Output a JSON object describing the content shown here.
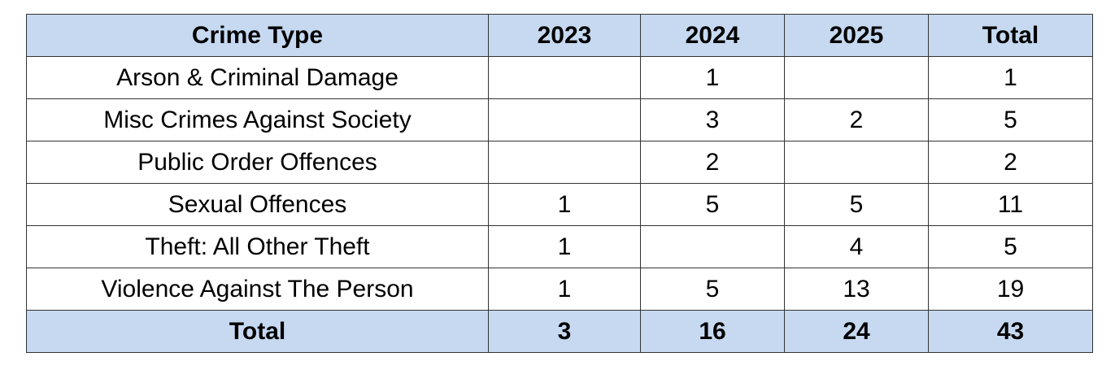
{
  "table": {
    "header": [
      "Crime Type",
      "2023",
      "2024",
      "2025",
      "Total"
    ],
    "rows": [
      [
        "Arson & Criminal Damage",
        null,
        1,
        null,
        1
      ],
      [
        "Misc Crimes Against Society",
        null,
        3,
        2,
        5
      ],
      [
        "Public Order Offences",
        null,
        2,
        null,
        2
      ],
      [
        "Sexual Offences",
        1,
        5,
        5,
        11
      ],
      [
        "Theft: All Other Theft",
        1,
        null,
        4,
        5
      ],
      [
        "Violence Against The Person",
        1,
        5,
        13,
        19
      ]
    ],
    "footer": [
      "Total",
      3,
      16,
      24,
      43
    ]
  }
}
